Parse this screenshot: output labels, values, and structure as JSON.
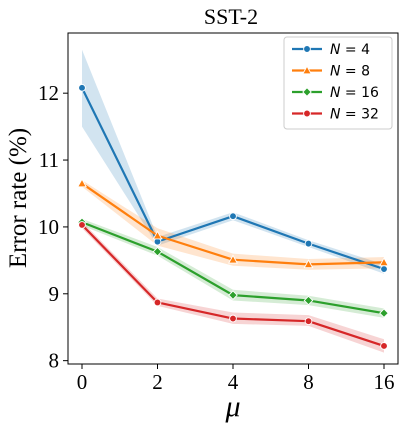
{
  "chart_data": {
    "type": "line",
    "title": "SST-2",
    "xlabel": "μ",
    "ylabel": "Error rate (%)",
    "categories": [
      "0",
      "2",
      "4",
      "8",
      "16"
    ],
    "ylim": [
      7.95,
      12.9
    ],
    "yticks": [
      8,
      9,
      10,
      11,
      12
    ],
    "grid": false,
    "legend_position": "top-right",
    "series": [
      {
        "name": "N = 4",
        "color": "#1f77b4",
        "marker": "circle",
        "values": [
          12.08,
          9.78,
          10.16,
          9.75,
          9.37
        ],
        "band_low": [
          11.5,
          9.72,
          10.1,
          9.7,
          9.3
        ],
        "band_high": [
          12.65,
          9.85,
          10.22,
          9.8,
          9.44
        ]
      },
      {
        "name": "N = 8",
        "color": "#ff7f0e",
        "marker": "triangle",
        "values": [
          10.65,
          9.87,
          9.51,
          9.44,
          9.47
        ],
        "band_low": [
          10.6,
          9.72,
          9.42,
          9.36,
          9.38
        ],
        "band_high": [
          10.7,
          9.98,
          9.6,
          9.52,
          9.55
        ]
      },
      {
        "name": "N = 16",
        "color": "#2ca02c",
        "marker": "diamond",
        "values": [
          10.07,
          9.63,
          8.98,
          8.9,
          8.71
        ],
        "band_low": [
          10.02,
          9.57,
          8.9,
          8.83,
          8.64
        ],
        "band_high": [
          10.12,
          9.7,
          9.06,
          8.97,
          8.78
        ]
      },
      {
        "name": "N = 32",
        "color": "#d62728",
        "marker": "circle",
        "values": [
          10.03,
          8.87,
          8.63,
          8.59,
          8.22
        ],
        "band_low": [
          9.98,
          8.82,
          8.55,
          8.52,
          8.12
        ],
        "band_high": [
          10.08,
          8.93,
          8.72,
          8.68,
          8.32
        ]
      }
    ]
  }
}
